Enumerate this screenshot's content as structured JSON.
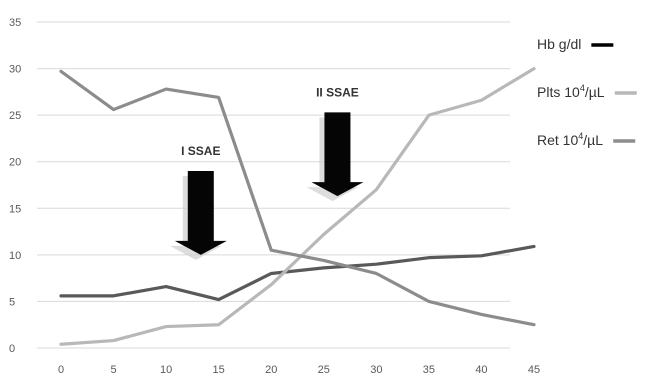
{
  "chart_data": {
    "type": "line",
    "x": [
      0,
      5,
      10,
      15,
      20,
      25,
      30,
      35,
      40,
      45
    ],
    "xlim": [
      0,
      45
    ],
    "ylim": [
      0,
      35
    ],
    "yticks": [
      0,
      5,
      10,
      15,
      20,
      25,
      30,
      35
    ],
    "grid": true,
    "legend_position": "right",
    "series": [
      {
        "key": "hb",
        "name": "Hb g/dl",
        "color": "#595959",
        "legend_color": "#000000",
        "values": [
          5.6,
          5.6,
          6.6,
          5.2,
          8.0,
          8.6,
          9.0,
          9.7,
          9.9,
          10.9
        ]
      },
      {
        "key": "plts",
        "name_prefix": "Plts 10",
        "name_sup": "4",
        "name_suffix": "/µL",
        "color": "#b8b8b8",
        "values": [
          0.4,
          0.8,
          2.3,
          2.5,
          6.8,
          12.2,
          17.0,
          25.0,
          26.6,
          30.0
        ]
      },
      {
        "key": "ret",
        "name_prefix": "Ret 10",
        "name_sup": "4",
        "name_suffix": "/µL",
        "color": "#8c8c8c",
        "values": [
          29.7,
          25.6,
          27.8,
          26.9,
          10.5,
          9.4,
          8.0,
          5.0,
          3.6,
          2.5
        ]
      }
    ],
    "annotations": [
      {
        "text": "I SSAE",
        "x": 13.3,
        "y_text": 20.7,
        "arrow_top": 19.0,
        "arrow_tip": 10.0
      },
      {
        "text": "II SSAE",
        "x": 26.3,
        "y_text": 27.0,
        "arrow_top": 25.3,
        "arrow_tip": 16.3
      }
    ]
  }
}
